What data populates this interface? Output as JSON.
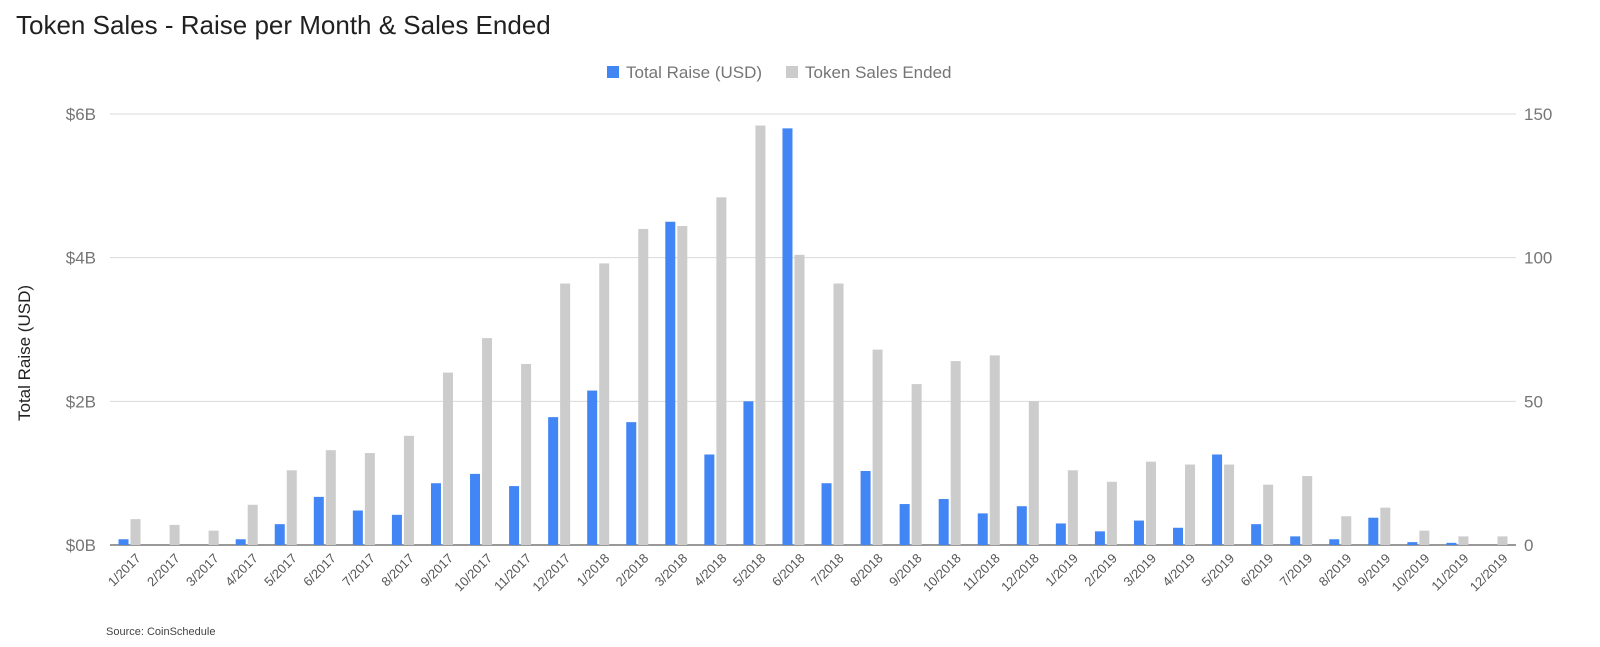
{
  "chart_data": {
    "type": "bar",
    "title": "Token Sales - Raise per Month & Sales Ended",
    "source": "Source: CoinSchedule",
    "ylabel": "Total Raise (USD)",
    "ylim": [
      0,
      6
    ],
    "y2lim": [
      0,
      150
    ],
    "y_ticks": [
      {
        "value": 0,
        "label": "$0B"
      },
      {
        "value": 2,
        "label": "$2B"
      },
      {
        "value": 4,
        "label": "$4B"
      },
      {
        "value": 6,
        "label": "$6B"
      }
    ],
    "y2_ticks": [
      {
        "value": 0,
        "label": "0"
      },
      {
        "value": 50,
        "label": "50"
      },
      {
        "value": 100,
        "label": "100"
      },
      {
        "value": 150,
        "label": "150"
      }
    ],
    "grid": true,
    "legend_position": "top-center",
    "categories": [
      "1/2017",
      "2/2017",
      "3/2017",
      "4/2017",
      "5/2017",
      "6/2017",
      "7/2017",
      "8/2017",
      "9/2017",
      "10/2017",
      "11/2017",
      "12/2017",
      "1/2018",
      "2/2018",
      "3/2018",
      "4/2018",
      "5/2018",
      "6/2018",
      "7/2018",
      "8/2018",
      "9/2018",
      "10/2018",
      "11/2018",
      "12/2018",
      "1/2019",
      "2/2019",
      "3/2019",
      "4/2019",
      "5/2019",
      "6/2019",
      "7/2019",
      "8/2019",
      "9/2019",
      "10/2019",
      "11/2019",
      "12/2019"
    ],
    "series": [
      {
        "name": "Total Raise (USD)",
        "axis": "left",
        "color": "#4285f4",
        "values": [
          0.08,
          0,
          0,
          0.08,
          0.29,
          0.67,
          0.48,
          0.42,
          0.86,
          0.99,
          0.82,
          1.78,
          2.15,
          1.71,
          4.5,
          1.26,
          2.0,
          5.8,
          0.86,
          1.03,
          0.57,
          0.64,
          0.44,
          0.54,
          0.3,
          0.19,
          0.34,
          0.24,
          1.26,
          0.29,
          0.12,
          0.08,
          0.38,
          0.04,
          0.03,
          0
        ]
      },
      {
        "name": "Token Sales Ended",
        "axis": "right",
        "color": "#cccccc",
        "values": [
          9,
          7,
          5,
          14,
          26,
          33,
          32,
          38,
          60,
          72,
          63,
          91,
          98,
          110,
          111,
          121,
          146,
          101,
          91,
          68,
          56,
          64,
          66,
          50,
          26,
          22,
          29,
          28,
          28,
          21,
          24,
          10,
          13,
          5,
          3,
          3
        ]
      }
    ]
  }
}
